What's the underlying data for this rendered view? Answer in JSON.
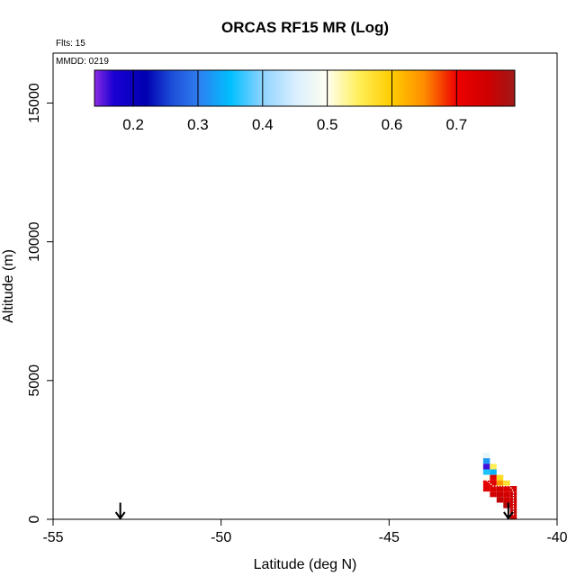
{
  "chart_data": {
    "type": "heatmap",
    "title": "ORCAS RF15 MR (Log)",
    "subtitle_flights": "Flts: 15",
    "subtitle_date": "MMDD: 0219",
    "xlabel": "Latitude (deg N)",
    "ylabel": "Altitude (m)",
    "xlim": [
      -55,
      -40
    ],
    "ylim": [
      0,
      16800
    ],
    "x_ticks": [
      -55,
      -50,
      -45,
      -40
    ],
    "x_tick_labels": [
      "-55",
      "-50",
      "-45",
      "-40"
    ],
    "y_ticks": [
      0,
      5000,
      10000,
      15000
    ],
    "y_tick_labels": [
      "0",
      "5000",
      "10000",
      "15000"
    ],
    "grid": false,
    "colorbar": {
      "placement": "top-left inset",
      "range": [
        0.14,
        0.79
      ],
      "ticks": [
        0.2,
        0.3,
        0.4,
        0.5,
        0.6,
        0.7
      ],
      "tick_labels": [
        "0.2",
        "0.3",
        "0.4",
        "0.5",
        "0.6",
        "0.7"
      ],
      "stops": [
        {
          "v": 0.14,
          "c": "#8a2be2"
        },
        {
          "v": 0.17,
          "c": "#1a00d4"
        },
        {
          "v": 0.22,
          "c": "#0000b0"
        },
        {
          "v": 0.26,
          "c": "#1d4fd8"
        },
        {
          "v": 0.3,
          "c": "#2f7df0"
        },
        {
          "v": 0.35,
          "c": "#00bfff"
        },
        {
          "v": 0.4,
          "c": "#8fd3ff"
        },
        {
          "v": 0.45,
          "c": "#d8eeff"
        },
        {
          "v": 0.5,
          "c": "#fffff0"
        },
        {
          "v": 0.55,
          "c": "#ffee55"
        },
        {
          "v": 0.6,
          "c": "#ffcc00"
        },
        {
          "v": 0.65,
          "c": "#ff8c00"
        },
        {
          "v": 0.7,
          "c": "#ee0000"
        },
        {
          "v": 0.75,
          "c": "#cc0000"
        },
        {
          "v": 0.79,
          "c": "#a01818"
        }
      ]
    },
    "cell_size": {
      "lat": 0.2,
      "alt": 200
    },
    "cells": [
      {
        "lat": -42.1,
        "alt": 2300,
        "value": 0.47
      },
      {
        "lat": -42.1,
        "alt": 2100,
        "value": 0.32
      },
      {
        "lat": -42.1,
        "alt": 1900,
        "value": 0.16
      },
      {
        "lat": -41.9,
        "alt": 1900,
        "value": 0.55
      },
      {
        "lat": -42.1,
        "alt": 1700,
        "value": 0.36
      },
      {
        "lat": -41.9,
        "alt": 1700,
        "value": 0.34
      },
      {
        "lat": -42.1,
        "alt": 1500,
        "value": 0.5
      },
      {
        "lat": -41.9,
        "alt": 1500,
        "value": 0.72
      },
      {
        "lat": -41.7,
        "alt": 1500,
        "value": 0.58
      },
      {
        "lat": -42.1,
        "alt": 1300,
        "value": 0.71
      },
      {
        "lat": -41.9,
        "alt": 1300,
        "value": 0.72
      },
      {
        "lat": -41.7,
        "alt": 1300,
        "value": 0.64
      },
      {
        "lat": -41.5,
        "alt": 1300,
        "value": 0.57
      },
      {
        "lat": -42.1,
        "alt": 1100,
        "value": 0.72
      },
      {
        "lat": -41.9,
        "alt": 1100,
        "value": 0.73
      },
      {
        "lat": -41.7,
        "alt": 1100,
        "value": 0.74
      },
      {
        "lat": -41.5,
        "alt": 1100,
        "value": 0.73
      },
      {
        "lat": -41.3,
        "alt": 1100,
        "value": 0.74
      },
      {
        "lat": -41.9,
        "alt": 900,
        "value": 0.74
      },
      {
        "lat": -41.7,
        "alt": 900,
        "value": 0.75
      },
      {
        "lat": -41.5,
        "alt": 900,
        "value": 0.74
      },
      {
        "lat": -41.3,
        "alt": 900,
        "value": 0.75
      },
      {
        "lat": -41.7,
        "alt": 700,
        "value": 0.76
      },
      {
        "lat": -41.5,
        "alt": 700,
        "value": 0.74
      },
      {
        "lat": -41.3,
        "alt": 700,
        "value": 0.75
      },
      {
        "lat": -41.5,
        "alt": 500,
        "value": 0.77
      },
      {
        "lat": -41.3,
        "alt": 500,
        "value": 0.74
      },
      {
        "lat": -41.3,
        "alt": 300,
        "value": 0.76
      },
      {
        "lat": -41.3,
        "alt": 100,
        "value": 0.75
      }
    ],
    "flight_track": {
      "color": "#ffffff",
      "points": [
        [
          -42.1,
          1400
        ],
        [
          -41.9,
          1200
        ],
        [
          -41.6,
          1200
        ],
        [
          -41.4,
          1200
        ],
        [
          -41.3,
          1000
        ],
        [
          -41.3,
          700
        ],
        [
          -41.3,
          400
        ],
        [
          -41.3,
          100
        ]
      ]
    },
    "arrows": [
      {
        "lat": -53.0,
        "alt_top": 600,
        "alt_bottom": 0
      },
      {
        "lat": -41.45,
        "alt_top": 600,
        "alt_bottom": 0
      }
    ]
  }
}
